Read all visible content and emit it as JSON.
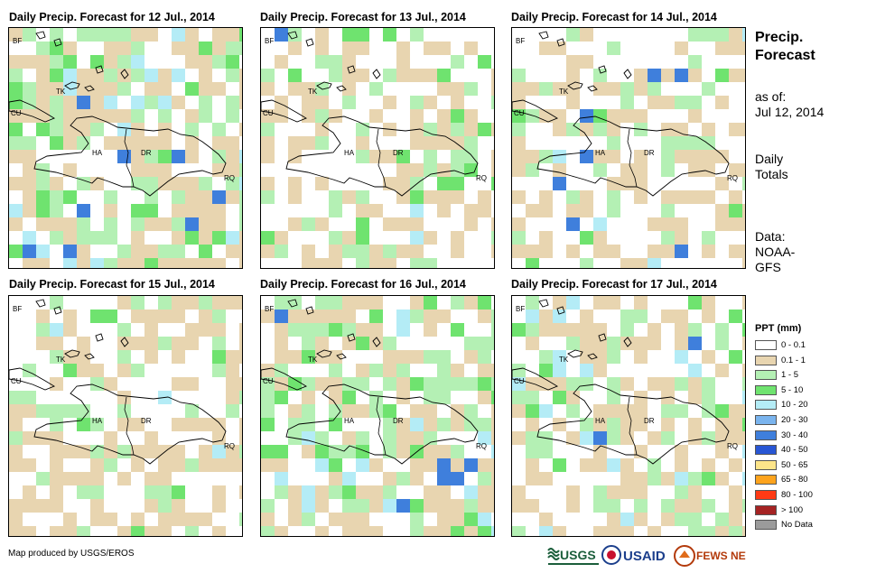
{
  "panels": [
    {
      "title": "Daily Precip. Forecast for 12 Jul., 2014"
    },
    {
      "title": "Daily Precip. Forecast for 13 Jul., 2014"
    },
    {
      "title": "Daily Precip. Forecast for 14 Jul., 2014"
    },
    {
      "title": "Daily Precip. Forecast for 15 Jul., 2014"
    },
    {
      "title": "Daily Precip. Forecast for 16 Jul., 2014"
    },
    {
      "title": "Daily Precip. Forecast for 17 Jul., 2014"
    }
  ],
  "map_labels": {
    "bf": "BF",
    "tk": "TK",
    "cu": "CU",
    "ha": "HA",
    "dr": "DR",
    "rq": "RQ"
  },
  "side": {
    "title_line1": "Precip.",
    "title_line2": "Forecast",
    "asof_line1": "as of:",
    "asof_line2": "Jul 12, 2014",
    "totals_line1": "Daily",
    "totals_line2": "Totals",
    "data_line1": "Data:",
    "data_line2": "NOAA-",
    "data_line3": "GFS"
  },
  "legend": {
    "title": "PPT (mm)",
    "items": [
      {
        "label": "0 - 0.1",
        "color": "#ffffff"
      },
      {
        "label": "0.1 - 1",
        "color": "#e8d5b0"
      },
      {
        "label": "1 - 5",
        "color": "#b4f0b4"
      },
      {
        "label": "5 - 10",
        "color": "#6fe36f"
      },
      {
        "label": "10 - 20",
        "color": "#b4ecf6"
      },
      {
        "label": "20 - 30",
        "color": "#7ab4ee"
      },
      {
        "label": "30 - 40",
        "color": "#3f7fdc"
      },
      {
        "label": "40 - 50",
        "color": "#2856d4"
      },
      {
        "label": "50 - 65",
        "color": "#fde58a"
      },
      {
        "label": "65 - 80",
        "color": "#fda31d"
      },
      {
        "label": "80 - 100",
        "color": "#ff3a14"
      },
      {
        "label": "> 100",
        "color": "#a52323"
      },
      {
        "label": "No Data",
        "color": "#9b9b9b"
      }
    ]
  },
  "credit": "Map produced by USGS/EROS",
  "logos": {
    "usgs": "USGS",
    "usaid": "USAID",
    "fews": "FEWS NET"
  }
}
